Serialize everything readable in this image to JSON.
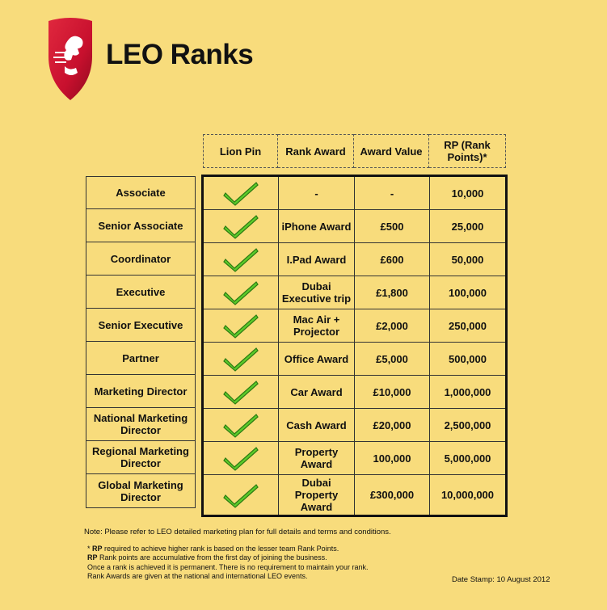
{
  "page": {
    "title": "LEO Ranks",
    "note": "Note: Please refer to LEO detailed marketing plan for full details and terms and conditions.",
    "footnotes": {
      "line1_prefix": "* ",
      "line1_bold": "RP",
      "line1_rest": " required to achieve higher rank is based on the lesser team Rank Points.",
      "line2_bold": "RP",
      "line2_rest": " Rank points are accumulative from the first day of joining the business.",
      "line3": "Once a rank is achieved it is permanent. There is no requirement to maintain your rank.",
      "line4": "Rank Awards are given at the national and international LEO events."
    },
    "date_stamp": "Date Stamp: 10 August 2012"
  },
  "columns": {
    "pin": "Lion Pin",
    "award": "Rank Award",
    "value": "Award Value",
    "rp": "RP (Rank Points)*"
  },
  "rows": [
    {
      "rank": "Associate",
      "award": "-",
      "value": "-",
      "rp": "10,000"
    },
    {
      "rank": "Senior Associate",
      "award": "iPhone Award",
      "value": "£500",
      "rp": "25,000"
    },
    {
      "rank": "Coordinator",
      "award": "I.Pad Award",
      "value": "£600",
      "rp": "50,000"
    },
    {
      "rank": "Executive",
      "award": "Dubai Executive trip",
      "value": "£1,800",
      "rp": "100,000"
    },
    {
      "rank": "Senior Executive",
      "award": "Mac Air + Projector",
      "value": "£2,000",
      "rp": "250,000"
    },
    {
      "rank": "Partner",
      "award": "Office Award",
      "value": "£5,000",
      "rp": "500,000"
    },
    {
      "rank": "Marketing Director",
      "award": "Car Award",
      "value": "£10,000",
      "rp": "1,000,000"
    },
    {
      "rank": "National Marketing Director",
      "award": "Cash Award",
      "value": "£20,000",
      "rp": "2,500,000"
    },
    {
      "rank": "Regional Marketing Director",
      "award": "Property Award",
      "value": "100,000",
      "rp": "5,000,000"
    },
    {
      "rank": "Global Marketing Director",
      "award": "Dubai Property Award",
      "value": "£300,000",
      "rp": "10,000,000"
    }
  ],
  "icons": {
    "logo": "lion-shield-icon",
    "pin": "green-checkmark-icon"
  },
  "colors": {
    "background": "#f8dc7c",
    "logo_red": "#c8102e",
    "check_green": "#5ccb2a"
  }
}
